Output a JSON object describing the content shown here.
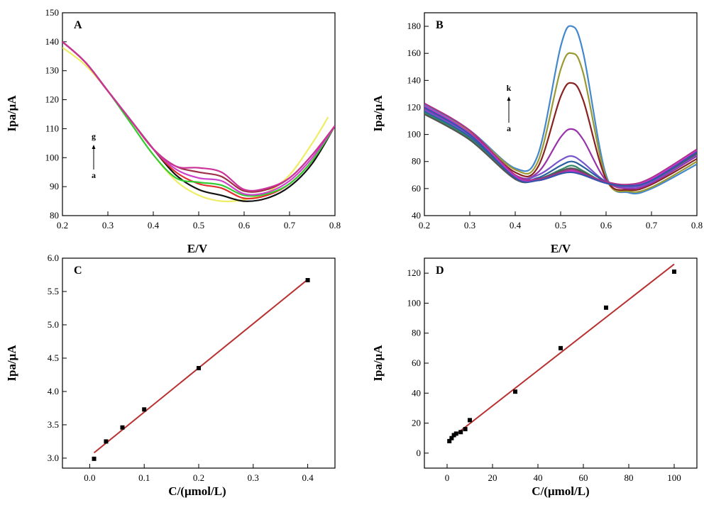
{
  "chart_data": [
    {
      "panel": "A",
      "type": "line",
      "xlabel": "E/V",
      "ylabel": "Ipa/μA",
      "xlim": [
        0.2,
        0.8
      ],
      "ylim": [
        80,
        150
      ],
      "xticks": [
        "0.2",
        "0.3",
        "0.4",
        "0.5",
        "0.6",
        "0.7",
        "0.8"
      ],
      "yticks": [
        "80",
        "90",
        "100",
        "110",
        "120",
        "130",
        "140",
        "150"
      ],
      "annotation_top": "g",
      "annotation_bottom": "a",
      "series": [
        {
          "color": "#eeee66",
          "x": [
            0.2,
            0.25,
            0.3,
            0.35,
            0.4,
            0.45,
            0.5,
            0.55,
            0.6,
            0.65,
            0.7,
            0.75,
            0.785
          ],
          "y": [
            138,
            132,
            123,
            112,
            101,
            92,
            87,
            85,
            85.5,
            88,
            94,
            105,
            114
          ]
        },
        {
          "color": "#111111",
          "x": [
            0.2,
            0.25,
            0.3,
            0.35,
            0.4,
            0.45,
            0.5,
            0.55,
            0.6,
            0.65,
            0.7,
            0.75,
            0.8
          ],
          "y": [
            140,
            133,
            123,
            113,
            103,
            94,
            89,
            87,
            85,
            86,
            90,
            98,
            111
          ]
        },
        {
          "color": "#e03030",
          "x": [
            0.2,
            0.25,
            0.3,
            0.35,
            0.4,
            0.45,
            0.5,
            0.55,
            0.6,
            0.65,
            0.7,
            0.75,
            0.8
          ],
          "y": [
            140,
            133,
            123,
            113,
            103,
            95,
            91,
            89.5,
            86,
            87,
            91,
            99,
            111
          ]
        },
        {
          "color": "#33cc33",
          "x": [
            0.2,
            0.25,
            0.3,
            0.35,
            0.4,
            0.45,
            0.5,
            0.55,
            0.6,
            0.65,
            0.7,
            0.75,
            0.8
          ],
          "y": [
            140,
            133,
            123,
            112,
            101,
            93,
            91.5,
            90.5,
            87,
            87.5,
            91,
            99,
            111
          ]
        },
        {
          "color": "#cc44cc",
          "x": [
            0.2,
            0.25,
            0.3,
            0.35,
            0.4,
            0.45,
            0.5,
            0.55,
            0.6,
            0.65,
            0.7,
            0.75,
            0.8
          ],
          "y": [
            140,
            133,
            123,
            113,
            103,
            96,
            93,
            92,
            87.5,
            88,
            92,
            100,
            111
          ]
        },
        {
          "color": "#a0304a",
          "x": [
            0.2,
            0.25,
            0.3,
            0.35,
            0.4,
            0.45,
            0.5,
            0.55,
            0.6,
            0.65,
            0.7,
            0.75,
            0.8
          ],
          "y": [
            140,
            133,
            123,
            113,
            103,
            97,
            95,
            93.5,
            88.5,
            89,
            93,
            101,
            111
          ]
        },
        {
          "color": "#cc3399",
          "x": [
            0.2,
            0.25,
            0.3,
            0.35,
            0.4,
            0.45,
            0.5,
            0.55,
            0.6,
            0.65,
            0.7,
            0.75,
            0.8
          ],
          "y": [
            140,
            133,
            123,
            113,
            103,
            97,
            96.5,
            95,
            89,
            89.5,
            93,
            101,
            111
          ]
        }
      ]
    },
    {
      "panel": "B",
      "type": "line",
      "xlabel": "E/V",
      "ylabel": "Ipa/μA",
      "xlim": [
        0.2,
        0.8
      ],
      "ylim": [
        40,
        190
      ],
      "xticks": [
        "0.2",
        "0.3",
        "0.4",
        "0.5",
        "0.6",
        "0.7",
        "0.8"
      ],
      "yticks": [
        "40",
        "60",
        "80",
        "100",
        "120",
        "140",
        "160",
        "180"
      ],
      "annotation_top": "k",
      "annotation_bottom": "a",
      "series": [
        {
          "color": "#4488cc",
          "x": [
            0.2,
            0.3,
            0.4,
            0.45,
            0.5,
            0.525,
            0.55,
            0.6,
            0.65,
            0.7,
            0.8
          ],
          "y": [
            122,
            103,
            75,
            85,
            165,
            180,
            160,
            70,
            57,
            60,
            78
          ]
        },
        {
          "color": "#999933",
          "x": [
            0.2,
            0.3,
            0.4,
            0.45,
            0.5,
            0.525,
            0.55,
            0.6,
            0.65,
            0.7,
            0.8
          ],
          "y": [
            121,
            102,
            74,
            80,
            148,
            160,
            145,
            68,
            58,
            61,
            80
          ]
        },
        {
          "color": "#882222",
          "x": [
            0.2,
            0.3,
            0.4,
            0.45,
            0.5,
            0.525,
            0.55,
            0.6,
            0.65,
            0.7,
            0.8
          ],
          "y": [
            120,
            101,
            72,
            76,
            128,
            138,
            125,
            67,
            59,
            63,
            82
          ]
        },
        {
          "color": "#9933aa",
          "x": [
            0.2,
            0.3,
            0.4,
            0.45,
            0.5,
            0.525,
            0.55,
            0.6,
            0.65,
            0.7,
            0.8
          ],
          "y": [
            119,
            100,
            70,
            72,
            98,
            104,
            96,
            66,
            60,
            64,
            84
          ]
        },
        {
          "color": "#7755cc",
          "x": [
            0.2,
            0.3,
            0.4,
            0.45,
            0.5,
            0.525,
            0.55,
            0.6,
            0.65,
            0.7,
            0.8
          ],
          "y": [
            118,
            99,
            69,
            70,
            81,
            84,
            79,
            65,
            61,
            65,
            85
          ]
        },
        {
          "color": "#2a5fa0",
          "x": [
            0.2,
            0.3,
            0.4,
            0.45,
            0.5,
            0.525,
            0.55,
            0.6,
            0.65,
            0.7,
            0.8
          ],
          "y": [
            117,
            98,
            68,
            68,
            77,
            80,
            76,
            65,
            62,
            66,
            86
          ]
        },
        {
          "color": "#338866",
          "x": [
            0.2,
            0.3,
            0.4,
            0.45,
            0.5,
            0.525,
            0.55,
            0.6,
            0.65,
            0.7,
            0.8
          ],
          "y": [
            116,
            97,
            67,
            67,
            74,
            77,
            73,
            64,
            62,
            66,
            86
          ]
        },
        {
          "color": "#555555",
          "x": [
            0.2,
            0.3,
            0.4,
            0.45,
            0.5,
            0.525,
            0.55,
            0.6,
            0.65,
            0.7,
            0.8
          ],
          "y": [
            115,
            96,
            67,
            67,
            73,
            75,
            72,
            64,
            62,
            66,
            86
          ]
        },
        {
          "color": "#aa3388",
          "x": [
            0.2,
            0.3,
            0.4,
            0.45,
            0.5,
            0.525,
            0.55,
            0.6,
            0.65,
            0.7,
            0.8
          ],
          "y": [
            123,
            103,
            70,
            67,
            72,
            74,
            71,
            65,
            63,
            68,
            89
          ]
        },
        {
          "color": "#cc33cc",
          "x": [
            0.2,
            0.3,
            0.4,
            0.45,
            0.5,
            0.525,
            0.55,
            0.6,
            0.65,
            0.7,
            0.8
          ],
          "y": [
            121,
            101,
            69,
            66,
            71,
            73,
            70,
            64,
            62,
            67,
            88
          ]
        },
        {
          "color": "#3355aa",
          "x": [
            0.2,
            0.3,
            0.4,
            0.45,
            0.5,
            0.525,
            0.55,
            0.6,
            0.65,
            0.7,
            0.8
          ],
          "y": [
            120,
            100,
            68,
            66,
            71,
            72,
            70,
            64,
            62,
            66,
            87
          ]
        }
      ]
    },
    {
      "panel": "C",
      "type": "scatter",
      "xlabel": "C/(μmol/L)",
      "ylabel": "Ipa/μA",
      "xlim": [
        -0.05,
        0.45
      ],
      "ylim": [
        2.85,
        6.0
      ],
      "xticks": [
        "0.0",
        "0.1",
        "0.2",
        "0.3",
        "0.4"
      ],
      "yticks": [
        "3.0",
        "3.5",
        "4.0",
        "4.5",
        "5.0",
        "5.5",
        "6.0"
      ],
      "points": {
        "x": [
          0.008,
          0.03,
          0.06,
          0.1,
          0.2,
          0.4
        ],
        "y": [
          2.99,
          3.25,
          3.46,
          3.73,
          4.35,
          5.67
        ]
      },
      "fit": {
        "color": "#b83030",
        "x": [
          0.008,
          0.4
        ],
        "y": [
          3.08,
          5.68
        ]
      }
    },
    {
      "panel": "D",
      "type": "scatter",
      "xlabel": "C/(μmol/L)",
      "ylabel": "Ipa/μA",
      "xlim": [
        -10,
        110
      ],
      "ylim": [
        -10,
        130
      ],
      "xticks": [
        "0",
        "20",
        "40",
        "60",
        "80",
        "100"
      ],
      "yticks": [
        "0",
        "20",
        "40",
        "60",
        "80",
        "100",
        "120"
      ],
      "points": {
        "x": [
          1,
          2,
          3,
          4,
          6,
          8,
          10,
          30,
          50,
          70,
          100
        ],
        "y": [
          8,
          10,
          12,
          13,
          14,
          16,
          22,
          41,
          70,
          97,
          121
        ]
      },
      "fit": {
        "color": "#b83030",
        "x": [
          0.5,
          100
        ],
        "y": [
          8.5,
          126
        ]
      }
    }
  ]
}
